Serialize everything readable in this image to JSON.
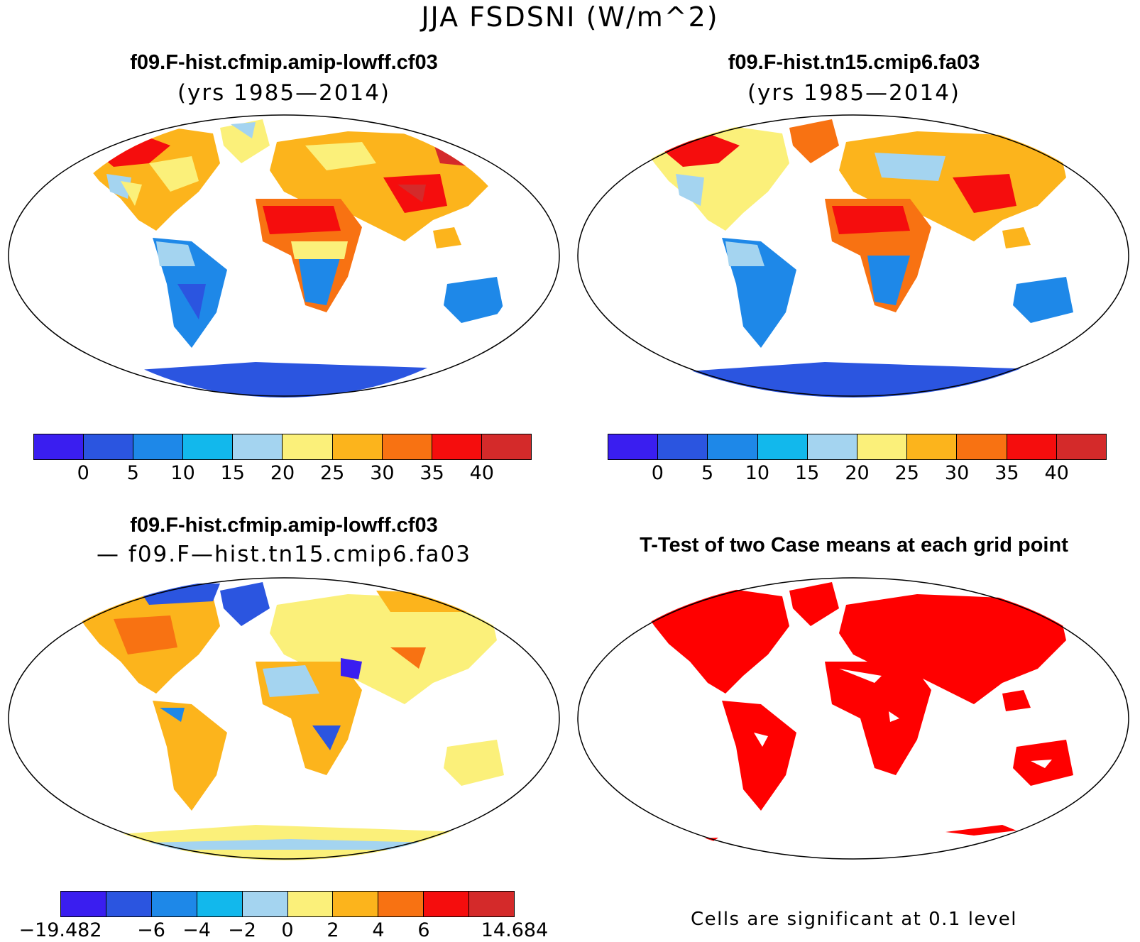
{
  "title": "JJA FSDSNI (W/m^2)",
  "palettes": {
    "abs": [
      "#3a1ef0",
      "#2b55e0",
      "#1e88e8",
      "#12b8ec",
      "#a4d4f0",
      "#fbf07a",
      "#fcb41c",
      "#f87212",
      "#f50d0d",
      "#d42a2a"
    ],
    "diff": [
      "#3a1ef0",
      "#2b55e0",
      "#1e88e8",
      "#12b8ec",
      "#a4d4f0",
      "#fbf07a",
      "#fcb41c",
      "#f87212",
      "#f50d0d",
      "#d42a2a"
    ],
    "sig": "#ff0000"
  },
  "panels": {
    "top_left": {
      "title": "f09.F-hist.cfmip.amip-lowff.cf03",
      "subtitle": "(yrs 1985—2014)",
      "colorbar_labels": [
        "0",
        "5",
        "10",
        "15",
        "20",
        "25",
        "30",
        "35",
        "40"
      ]
    },
    "top_right": {
      "title": "f09.F-hist.tn15.cmip6.fa03",
      "subtitle": "(yrs 1985—2014)",
      "colorbar_labels": [
        "0",
        "5",
        "10",
        "15",
        "20",
        "25",
        "30",
        "35",
        "40"
      ]
    },
    "bottom_left": {
      "title": "f09.F-hist.cfmip.amip-lowff.cf03",
      "subtitle": "— f09.F—hist.tn15.cmip6.fa03",
      "colorbar_labels": [
        "−19.482",
        "",
        "−6",
        "−4",
        "−2",
        "0",
        "2",
        "4",
        "6",
        "",
        "14.684"
      ]
    },
    "bottom_right": {
      "title": "T-Test of two Case means at each grid point",
      "footnote": "Cells are significant at 0.1 level"
    }
  }
}
